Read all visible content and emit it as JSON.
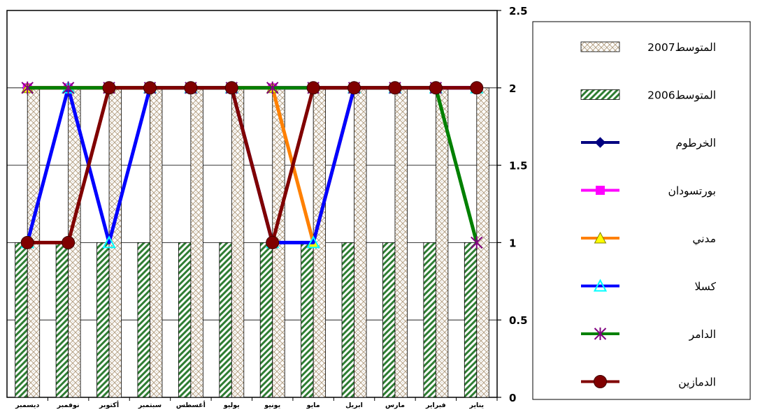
{
  "chart_data": {
    "type": "bar",
    "categories": [
      "يناير",
      "فبراير",
      "مارس",
      "ابريل",
      "مايو",
      "يونيو",
      "يوليو",
      "أغسطس",
      "سبتمبر",
      "أكتوبر",
      "نوفمبر",
      "ديسمبر"
    ],
    "x_axis_direction": "right-to-left",
    "y_axis_position": "right",
    "ylim": [
      0,
      2.5
    ],
    "yticks": [
      "0",
      "0.5",
      "1",
      "1.5",
      "2",
      "2.5"
    ],
    "ytick_values": [
      0,
      0.5,
      1,
      1.5,
      2,
      2.5
    ],
    "grid": true,
    "legend_position": "right",
    "bar_series": [
      {
        "name": "المتوسط2007",
        "pattern": "crosshatch",
        "color": "#b8a58a",
        "values": [
          2,
          2,
          2,
          2,
          2,
          2,
          2,
          2,
          2,
          2,
          2,
          2
        ]
      },
      {
        "name": "المتوسط2006",
        "pattern": "diagonal-stripes",
        "color": "#2e7d32",
        "values": [
          1,
          1,
          1,
          1,
          1,
          1,
          1,
          1,
          1,
          1,
          1,
          1
        ]
      }
    ],
    "line_series": [
      {
        "name": "الخرطوم",
        "color": "#000080",
        "marker": "diamond",
        "values": [
          2,
          2,
          2,
          2,
          2,
          2,
          2,
          2,
          2,
          2,
          2,
          2
        ]
      },
      {
        "name": "بورتسودان",
        "color": "#ff00ff",
        "marker": "square",
        "values": [
          2,
          2,
          2,
          2,
          2,
          2,
          2,
          2,
          2,
          2,
          2,
          2
        ]
      },
      {
        "name": "مدني",
        "color": "#ff8000",
        "marker": "triangle",
        "marker_fill": "#ffff00",
        "values": [
          2,
          2,
          2,
          2,
          1,
          2,
          2,
          2,
          2,
          2,
          2,
          2
        ]
      },
      {
        "name": "كسلا",
        "color": "#0000ff",
        "marker": "triangle-open",
        "marker_stroke": "#00ffff",
        "values": [
          2,
          2,
          2,
          2,
          1,
          1,
          2,
          2,
          2,
          1,
          2,
          1
        ]
      },
      {
        "name": "الدامر",
        "color": "#008000",
        "marker": "star",
        "marker_stroke": "#800080",
        "values": [
          1,
          2,
          2,
          2,
          2,
          2,
          2,
          2,
          2,
          2,
          2,
          2
        ]
      },
      {
        "name": "الدمازين",
        "color": "#800000",
        "marker": "circle",
        "values": [
          2,
          2,
          2,
          2,
          2,
          1,
          2,
          2,
          2,
          2,
          1,
          1
        ]
      }
    ]
  }
}
